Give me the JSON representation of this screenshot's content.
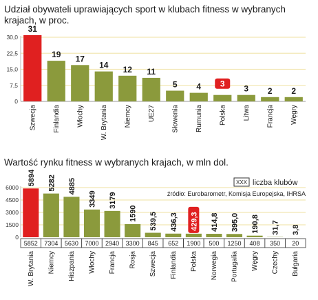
{
  "chart_data": [
    {
      "type": "bar",
      "title": "Udział obywateli uprawiających sport w klubach fitness w wybranych krajach, w proc.",
      "categories": [
        "Szwecja",
        "Finlandia",
        "Włochy",
        "W. Brytania",
        "Niemcy",
        "UE27",
        "Słowenia",
        "Rumunia",
        "Polska",
        "Litwa",
        "Francja",
        "Węgry"
      ],
      "values": [
        31,
        19,
        17,
        14,
        12,
        11,
        5,
        4,
        3,
        3,
        2,
        2
      ],
      "highlight": [
        "Szwecja",
        "Polska"
      ],
      "ylim": [
        0,
        30
      ],
      "yticks": [
        "0",
        "7,5",
        "15,0",
        "22,5",
        "30,0"
      ],
      "colors": {
        "bar": "#8b9a3c",
        "highlight": "#e02020",
        "grid": "#f2e7b4"
      }
    },
    {
      "type": "bar",
      "title": "Wartość rynku fitness w wybranych krajach, w mln dol.",
      "categories": [
        "W. Brytania",
        "Niemcy",
        "Hiszpania",
        "Włochy",
        "Francja",
        "Rosja",
        "Szwecja",
        "Finlandia",
        "Polska",
        "Norwegia",
        "Portugalia",
        "Węgry",
        "Czechy",
        "Bułgaria"
      ],
      "values": [
        5894,
        5282,
        4885,
        3349,
        3179,
        1590,
        539.5,
        436.3,
        429.3,
        414.8,
        395.0,
        190.8,
        31.7,
        3.8
      ],
      "value_labels": [
        "5894",
        "5282",
        "4885",
        "3349",
        "3179",
        "1590",
        "539,5",
        "436,3",
        "429,3",
        "414,8",
        "395,0",
        "190,8",
        "31,7",
        "3,8"
      ],
      "clubs": [
        "5852",
        "7304",
        "5630",
        "7000",
        "2940",
        "3300",
        "845",
        "652",
        "1900",
        "500",
        "1250",
        "408",
        "350",
        "20"
      ],
      "highlight": [
        "W. Brytania",
        "Polska"
      ],
      "ylim": [
        0,
        6000
      ],
      "yticks": [
        "0",
        "1500",
        "3000",
        "4500",
        "6000"
      ],
      "legend_box": "XXX",
      "legend_text": "liczba klubów",
      "source": "źródło: Eurobarometr, Komisja Europejska, IHRSA",
      "colors": {
        "bar": "#8b9a3c",
        "highlight": "#e02020",
        "grid": "#f2e7b4"
      }
    }
  ]
}
